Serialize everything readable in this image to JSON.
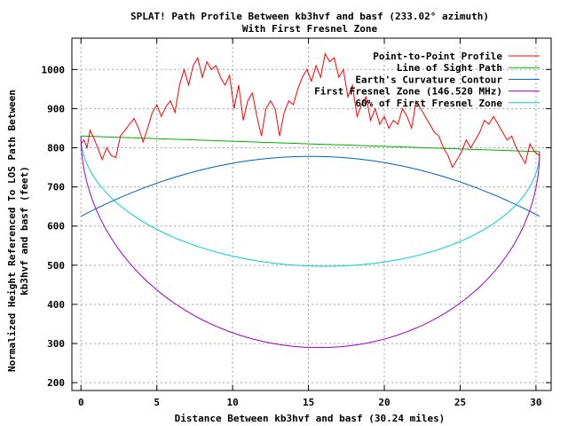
{
  "chart_data": {
    "type": "line",
    "title": "SPLAT! Path Profile Between kb3hvf and basf (233.02° azimuth)",
    "subtitle": "With First Fresnel Zone",
    "xlabel": "Distance Between kb3hvf and basf (30.24 miles)",
    "ylabel_line1": "Normalized Height Referenced To LOS Path Between",
    "ylabel_line2": "kb3hvf and basf (feet)",
    "xlim": [
      -0.6,
      31
    ],
    "ylim": [
      180,
      1080
    ],
    "xticks": [
      0,
      5,
      10,
      15,
      20,
      25,
      30
    ],
    "yticks": [
      200,
      300,
      400,
      500,
      600,
      700,
      800,
      900,
      1000
    ],
    "grid": true,
    "legend_position": "top-right",
    "path_length": 30.24,
    "series": [
      {
        "name": "Point-to-Point Profile",
        "color": "#ff0000",
        "x": [
          0,
          0.2,
          0.4,
          0.6,
          0.9,
          1.2,
          1.4,
          1.7,
          2.0,
          2.3,
          2.6,
          2.9,
          3.2,
          3.5,
          3.8,
          4.1,
          4.4,
          4.7,
          5.0,
          5.3,
          5.6,
          5.9,
          6.2,
          6.5,
          6.8,
          7.1,
          7.4,
          7.7,
          8.0,
          8.3,
          8.6,
          8.9,
          9.2,
          9.5,
          9.8,
          10.1,
          10.4,
          10.7,
          11.0,
          11.3,
          11.6,
          11.9,
          12.2,
          12.5,
          12.8,
          13.1,
          13.4,
          13.7,
          14.0,
          14.3,
          14.6,
          14.9,
          15.2,
          15.5,
          15.8,
          16.1,
          16.4,
          16.7,
          17.0,
          17.3,
          17.6,
          17.9,
          18.2,
          18.5,
          18.8,
          19.1,
          19.4,
          19.7,
          20.0,
          20.3,
          20.6,
          20.9,
          21.2,
          21.5,
          21.8,
          22.1,
          22.4,
          22.7,
          23.0,
          23.3,
          23.6,
          23.9,
          24.2,
          24.5,
          24.8,
          25.1,
          25.4,
          25.7,
          26.0,
          26.3,
          26.6,
          26.9,
          27.2,
          27.5,
          27.8,
          28.1,
          28.4,
          28.7,
          29.0,
          29.3,
          29.6,
          29.9,
          30.24
        ],
        "y": [
          810,
          820,
          800,
          845,
          820,
          790,
          770,
          800,
          780,
          775,
          830,
          845,
          860,
          875,
          850,
          815,
          850,
          890,
          910,
          880,
          905,
          920,
          890,
          960,
          1000,
          960,
          1010,
          1030,
          980,
          1020,
          1000,
          1010,
          980,
          960,
          985,
          900,
          960,
          870,
          920,
          940,
          880,
          830,
          900,
          920,
          900,
          830,
          890,
          920,
          910,
          950,
          980,
          1000,
          970,
          1010,
          980,
          1040,
          1020,
          1030,
          980,
          1000,
          930,
          960,
          880,
          910,
          930,
          870,
          900,
          860,
          880,
          850,
          870,
          860,
          900,
          880,
          850,
          920,
          900,
          880,
          860,
          840,
          830,
          800,
          780,
          750,
          770,
          790,
          820,
          800,
          820,
          840,
          870,
          860,
          880,
          860,
          840,
          820,
          830,
          800,
          780,
          760,
          810,
          790,
          780
        ]
      },
      {
        "name": "Line of Sight Path",
        "color": "#00b000",
        "x": [
          0,
          30.24
        ],
        "y": [
          830,
          790
        ]
      },
      {
        "name": "Earth's Curvature Contour",
        "color": "#0060c0",
        "form": "arc",
        "start": 625,
        "mid": 778,
        "end": 625
      },
      {
        "name": "First Fresnel Zone (146.520 MHz)",
        "color": "#a000c8",
        "form": "lens",
        "los_start": 830,
        "los_end": 790,
        "max_depth": 520
      },
      {
        "name": "60% of First Fresnel Zone",
        "color": "#00d0d0",
        "form": "lens",
        "los_start": 830,
        "los_end": 790,
        "max_depth": 312
      }
    ]
  }
}
